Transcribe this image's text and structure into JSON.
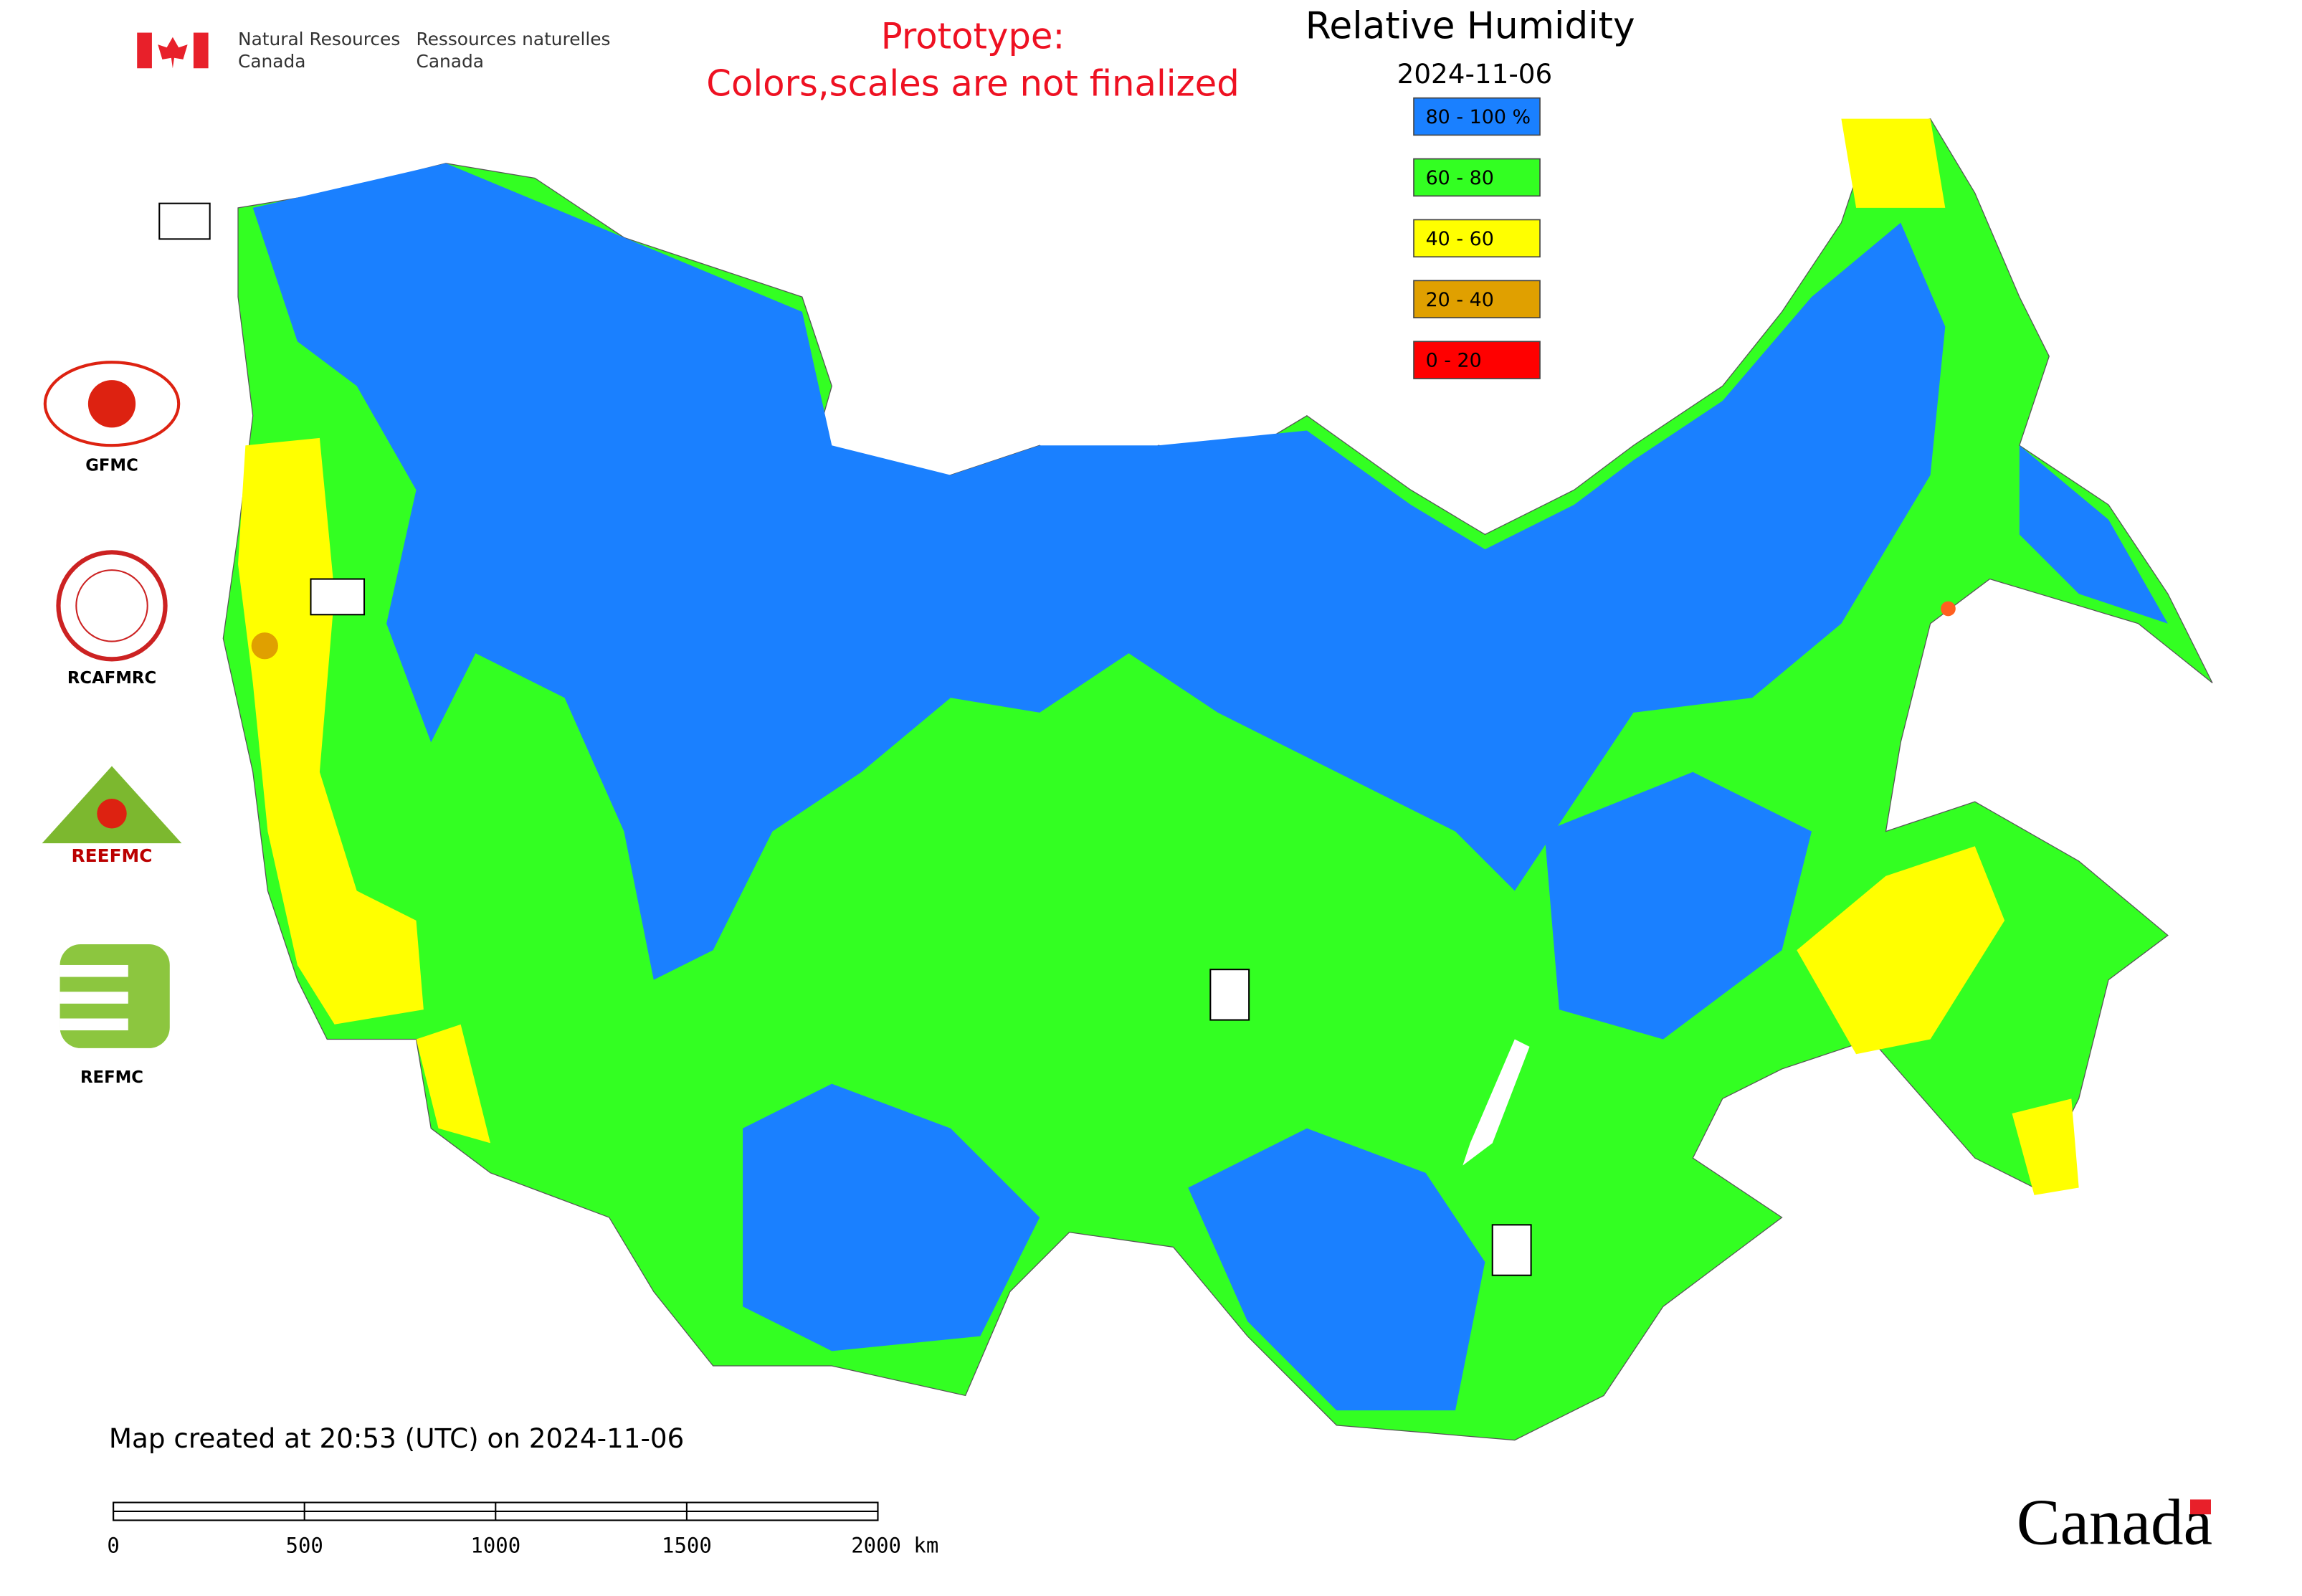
{
  "header": {
    "agency_en": "Natural Resources",
    "agency_en_2": "Canada",
    "agency_fr": "Ressources naturelles",
    "agency_fr_2": "Canada"
  },
  "notice": {
    "line1": "Prototype:",
    "line2": "Colors,scales are not finalized"
  },
  "map": {
    "title": "Relative Humidity",
    "date": "2024-11-06",
    "legend": [
      {
        "label": "80 - 100 %",
        "color": "#1a80ff"
      },
      {
        "label": "60 - 80",
        "color": "#33ff22"
      },
      {
        "label": "40 - 60",
        "color": "#ffff00"
      },
      {
        "label": "20 - 40",
        "color": "#e0a000"
      },
      {
        "label": "0 - 20",
        "color": "#ff0000"
      }
    ]
  },
  "logos": [
    "GFMC",
    "RCAFMRC",
    "REEFMC",
    "REFMC"
  ],
  "footer": {
    "created": "Map created at 20:53 (UTC) on 2024-11-06",
    "scale_labels": [
      "0",
      "500",
      "1000",
      "1500",
      "2000 km"
    ],
    "wordmark": "Canada"
  }
}
